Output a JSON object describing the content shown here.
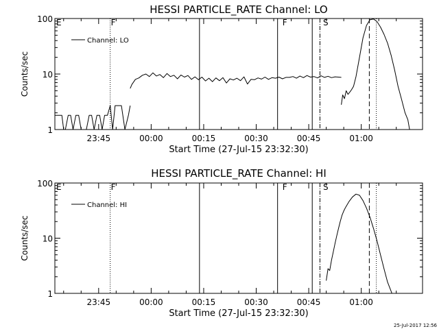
{
  "chart_data": [
    {
      "type": "line",
      "title": "HESSI PARTICLE_RATE Channel: LO",
      "xlabel": "Start Time (27-Jul-15 23:32:30)",
      "ylabel": "Counts/sec",
      "yscale": "log",
      "ylim": [
        1,
        100
      ],
      "y_ticks": [
        "1",
        "10",
        "100"
      ],
      "x_ticks": [
        "23:45",
        "00:00",
        "00:15",
        "00:30",
        "00:45",
        "01:00"
      ],
      "x_unit": "minutes after 23:32:30",
      "xlim": [
        0,
        105
      ],
      "legend": "top-left",
      "grid": false,
      "series": [
        {
          "name": "Channel: LO",
          "segments": [
            {
              "x": [
                0.0,
                1.0,
                2.0,
                2.5,
                3.0,
                3.8,
                4.5,
                5.2,
                6.0,
                6.8,
                7.5,
                8.2,
                9.0,
                9.8,
                10.5,
                11.2,
                12.0,
                12.8,
                13.5,
                14.2,
                15.0,
                15.8,
                16.5,
                17.2,
                18.0,
                19.0,
                20.0,
                21.0,
                21.5
              ],
              "y": [
                1.8,
                1.8,
                1.8,
                1.0,
                1.0,
                1.8,
                1.8,
                1.0,
                1.8,
                1.8,
                1.0,
                1.0,
                1.0,
                1.8,
                1.8,
                1.0,
                1.8,
                1.8,
                1.0,
                1.8,
                1.8,
                2.7,
                1.0,
                2.7,
                2.7,
                2.7,
                1.0,
                1.8,
                2.7
              ]
            },
            {
              "x": [
                21.5,
                22.0,
                23.0,
                24.0,
                25.0,
                26.0,
                27.0,
                28.0,
                29.0,
                30.0,
                31.0,
                32.0,
                33.0,
                34.0,
                35.0,
                36.0,
                37.0,
                38.0,
                39.0,
                40.0,
                41.0,
                42.0,
                43.0,
                44.0,
                45.0,
                46.0,
                47.0,
                48.0,
                49.0,
                50.0,
                51.0,
                52.0,
                53.0,
                54.0,
                55.0,
                56.0,
                57.0,
                58.0,
                59.0,
                60.0,
                61.0,
                62.0,
                63.0,
                64.0,
                65.0,
                66.0,
                67.0,
                68.0,
                69.0,
                70.0,
                71.0,
                72.0,
                73.0,
                74.0,
                75.0,
                76.0,
                77.0,
                78.0,
                79.0,
                80.0,
                81.0,
                81.8
              ],
              "y": [
                5.5,
                6.5,
                8.0,
                8.5,
                9.5,
                10.0,
                9.0,
                10.5,
                9.2,
                9.8,
                8.6,
                10.2,
                9.0,
                9.5,
                8.2,
                9.6,
                8.8,
                9.4,
                8.0,
                8.9,
                7.9,
                8.8,
                7.5,
                8.4,
                7.3,
                8.5,
                7.6,
                8.6,
                6.9,
                8.2,
                7.8,
                8.4,
                7.6,
                8.9,
                6.6,
                8.0,
                7.9,
                8.5,
                8.1,
                8.8,
                8.0,
                8.6,
                8.4,
                8.8,
                8.2,
                8.7,
                8.7,
                9.0,
                8.4,
                9.2,
                8.6,
                9.4,
                8.8,
                9.0,
                8.5,
                9.3,
                8.7,
                9.1,
                8.6,
                8.9,
                8.8,
                8.7
              ]
            },
            {
              "x": [
                81.8,
                82.2,
                82.7,
                83.2,
                83.7,
                84.2,
                84.7,
                85.3,
                86.0,
                87.0,
                88.0,
                89.0,
                90.0,
                91.0,
                92.0,
                93.0,
                94.0,
                95.0,
                96.0,
                97.0,
                98.0,
                99.0,
                100.0,
                100.8,
                101.3
              ],
              "y": [
                2.8,
                4.2,
                3.6,
                5.0,
                4.3,
                4.7,
                5.2,
                6.0,
                9.0,
                20.0,
                45.0,
                75.0,
                95.0,
                98.0,
                88.0,
                70.0,
                52.0,
                36.0,
                22.0,
                12.0,
                6.0,
                3.5,
                2.0,
                1.5,
                1.0
              ]
            }
          ]
        }
      ],
      "annotations": [
        {
          "label": "E",
          "x": 0.2
        },
        {
          "label": "F",
          "x": 15.8
        },
        {
          "label": "F",
          "x": 64.8
        },
        {
          "label": "S",
          "x": 76.4
        }
      ],
      "vertical_lines": [
        {
          "x": 15.8,
          "style": "dotted"
        },
        {
          "x": 41.3,
          "style": "solid"
        },
        {
          "x": 63.6,
          "style": "solid"
        },
        {
          "x": 73.5,
          "style": "solid"
        },
        {
          "x": 75.7,
          "style": "dash-dot"
        },
        {
          "x": 89.8,
          "style": "dashed"
        },
        {
          "x": 91.8,
          "style": "dotted"
        }
      ]
    },
    {
      "type": "line",
      "title": "HESSI PARTICLE_RATE Channel: HI",
      "xlabel": "Start Time (27-Jul-15 23:32:30)",
      "ylabel": "Counts/sec",
      "yscale": "log",
      "ylim": [
        1,
        100
      ],
      "y_ticks": [
        "1",
        "10",
        "100"
      ],
      "x_ticks": [
        "23:45",
        "00:00",
        "00:15",
        "00:30",
        "00:45",
        "01:00"
      ],
      "x_unit": "minutes after 23:32:30",
      "xlim": [
        0,
        105
      ],
      "legend": "top-left",
      "grid": false,
      "series": [
        {
          "name": "Channel: HI",
          "segments": [
            {
              "x": [
                77.5,
                78.0,
                78.5,
                79.0,
                79.5,
                80.0,
                80.5,
                81.0,
                81.5,
                82.0,
                82.5,
                83.0,
                84.0,
                85.0,
                86.0,
                87.0,
                88.0,
                89.0,
                90.0,
                91.0,
                92.0,
                93.0,
                94.0,
                95.0,
                96.0,
                96.5
              ],
              "y": [
                1.7,
                2.8,
                2.6,
                4.0,
                5.6,
                8.0,
                11.0,
                15.0,
                20.0,
                26.0,
                31.0,
                36.0,
                46.0,
                56.0,
                63.0,
                60.0,
                48.0,
                35.0,
                24.0,
                15.0,
                9.0,
                5.0,
                2.8,
                1.6,
                1.1,
                0.9
              ]
            }
          ]
        }
      ],
      "annotations": [
        {
          "label": "E",
          "x": 0.2
        },
        {
          "label": "F",
          "x": 15.8
        },
        {
          "label": "F",
          "x": 64.8
        },
        {
          "label": "S",
          "x": 76.4
        }
      ],
      "vertical_lines": [
        {
          "x": 15.8,
          "style": "dotted"
        },
        {
          "x": 41.3,
          "style": "solid"
        },
        {
          "x": 63.6,
          "style": "solid"
        },
        {
          "x": 73.5,
          "style": "solid"
        },
        {
          "x": 75.7,
          "style": "dash-dot"
        },
        {
          "x": 89.8,
          "style": "dashed"
        },
        {
          "x": 91.8,
          "style": "dotted"
        }
      ]
    }
  ],
  "footer": {
    "timestamp": "25-Jul-2017 12:56"
  }
}
